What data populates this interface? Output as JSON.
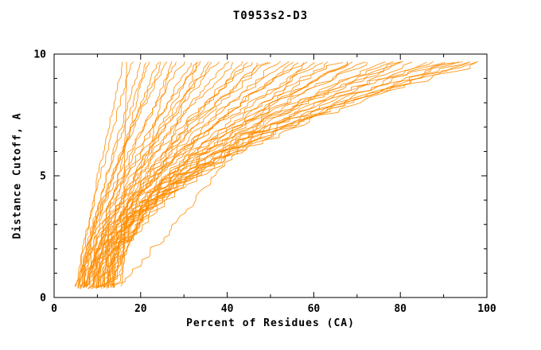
{
  "chart_data": {
    "type": "line",
    "title": "T0953s2-D3",
    "xlabel": "Percent of Residues (CA)",
    "ylabel": "Distance Cutoff, A",
    "xlim": [
      0,
      100
    ],
    "ylim": [
      0,
      10
    ],
    "x_major_ticks": [
      0,
      20,
      40,
      60,
      80,
      100
    ],
    "x_minor_tick_step": 10,
    "y_major_ticks": [
      0,
      5,
      10
    ],
    "y_minor_tick_step": 1,
    "grid": false,
    "legend": "none",
    "line_color": "#ff8c00",
    "axis_color": "#000000",
    "background_color": "#ffffff",
    "curve_y_min": 0.35,
    "curve_y_max": 9.7,
    "series_format": [
      "x_at_bottom_cutoff",
      "x_at_top_cutoff",
      "curvature_exponent"
    ],
    "series_model": "x(y) = x_bottom + (x_top - x_bottom) * t^exponent, with t = (y - 0.35) / (9.7 - 0.35); each entry is one model accuracy curve rising from lower-left to upper-right",
    "series": [
      [
        5.0,
        16,
        1.1
      ],
      [
        5.2,
        18,
        1.2
      ],
      [
        5.4,
        20,
        1.1
      ],
      [
        5.6,
        22,
        1.3
      ],
      [
        5.8,
        24,
        1.2
      ],
      [
        6.0,
        26,
        1.4
      ],
      [
        6.2,
        28,
        1.2
      ],
      [
        6.4,
        30,
        1.5
      ],
      [
        6.6,
        32,
        1.3
      ],
      [
        6.8,
        34,
        1.6
      ],
      [
        7.0,
        36,
        1.3
      ],
      [
        7.2,
        38,
        1.5
      ],
      [
        7.4,
        40,
        1.4
      ],
      [
        7.6,
        42,
        1.6
      ],
      [
        7.8,
        44,
        1.4
      ],
      [
        8.0,
        46,
        1.7
      ],
      [
        8.2,
        48,
        1.5
      ],
      [
        8.4,
        50,
        1.6
      ],
      [
        8.6,
        52,
        1.5
      ],
      [
        8.8,
        54,
        1.7
      ],
      [
        9.0,
        56,
        1.6
      ],
      [
        9.2,
        58,
        1.8
      ],
      [
        9.4,
        60,
        1.6
      ],
      [
        9.6,
        62,
        1.9
      ],
      [
        9.8,
        64,
        1.7
      ],
      [
        10.0,
        66,
        1.8
      ],
      [
        10.2,
        68,
        1.7
      ],
      [
        10.4,
        70,
        1.9
      ],
      [
        10.6,
        72,
        1.8
      ],
      [
        10.8,
        74,
        2.0
      ],
      [
        11.0,
        76,
        1.8
      ],
      [
        11.2,
        78,
        2.0
      ],
      [
        11.4,
        80,
        1.9
      ],
      [
        11.6,
        82,
        2.1
      ],
      [
        11.8,
        84,
        1.9
      ],
      [
        12.0,
        86,
        2.0
      ],
      [
        12.2,
        88,
        2.1
      ],
      [
        12.4,
        90,
        2.0
      ],
      [
        12.6,
        92,
        2.2
      ],
      [
        12.8,
        94,
        2.0
      ],
      [
        13.0,
        96,
        2.1
      ],
      [
        13.2,
        98,
        2.2
      ],
      [
        13.4,
        100,
        2.1
      ],
      [
        15.5,
        16.5,
        0.9
      ],
      [
        6.5,
        21,
        0.8
      ],
      [
        7.5,
        33,
        1.2
      ],
      [
        8.5,
        45,
        1.5
      ],
      [
        9.5,
        57,
        1.7
      ],
      [
        10.5,
        69,
        1.8
      ],
      [
        11.5,
        81,
        2.0
      ],
      [
        12.5,
        93,
        2.1
      ],
      [
        5.5,
        25,
        1.3
      ],
      [
        6.0,
        37,
        1.5
      ],
      [
        7.0,
        49,
        1.6
      ],
      [
        14.0,
        99,
        2.3
      ],
      [
        9.0,
        27,
        0.7
      ],
      [
        11.0,
        33,
        0.75
      ],
      [
        13.5,
        58,
        0.9
      ]
    ]
  },
  "layout_text": {
    "title": "T0953s2-D3",
    "xlabel": "Percent of Residues (CA)",
    "ylabel": "Distance Cutoff, A"
  }
}
